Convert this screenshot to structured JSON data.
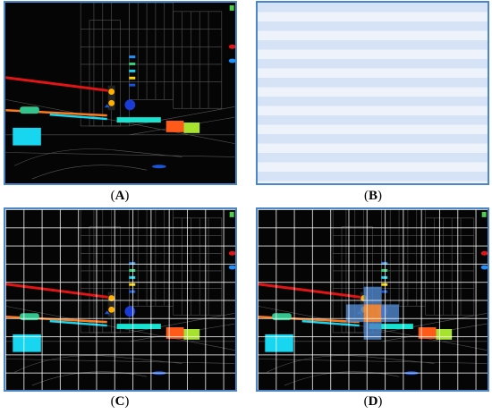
{
  "panels": [
    {
      "id": "A",
      "caption_open": "(",
      "caption_letter": "A",
      "caption_close": ")"
    },
    {
      "id": "B",
      "caption_open": "(",
      "caption_letter": "B",
      "caption_close": ")"
    },
    {
      "id": "C",
      "caption_open": "(",
      "caption_letter": "C",
      "caption_close": ")"
    },
    {
      "id": "D",
      "caption_open": "(",
      "caption_letter": "D",
      "caption_close": ")"
    }
  ],
  "colors": {
    "frame": "#4a86c8",
    "grid_light_a": "#dbe6f6",
    "grid_light_b": "#eef3fb",
    "highlight_blue": "#4f83c6",
    "highlight_orange": "#f08a3c",
    "red_line": "#e01515",
    "cyan": "#18d6f0",
    "orange_block": "#ff5a1a",
    "green_block": "#a6e22e"
  }
}
